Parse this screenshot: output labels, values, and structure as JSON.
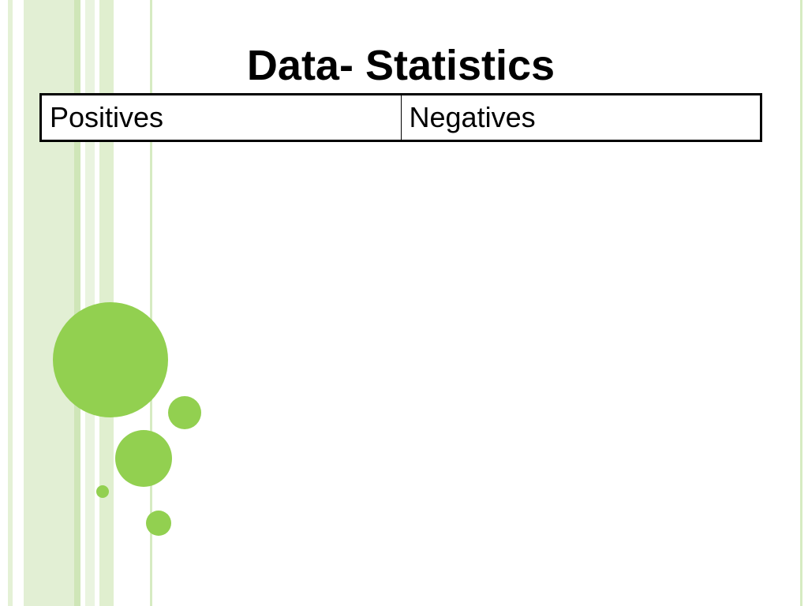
{
  "title": "Data- Statistics",
  "table": {
    "rows": [
      [
        "Positives",
        "Negatives"
      ]
    ]
  }
}
